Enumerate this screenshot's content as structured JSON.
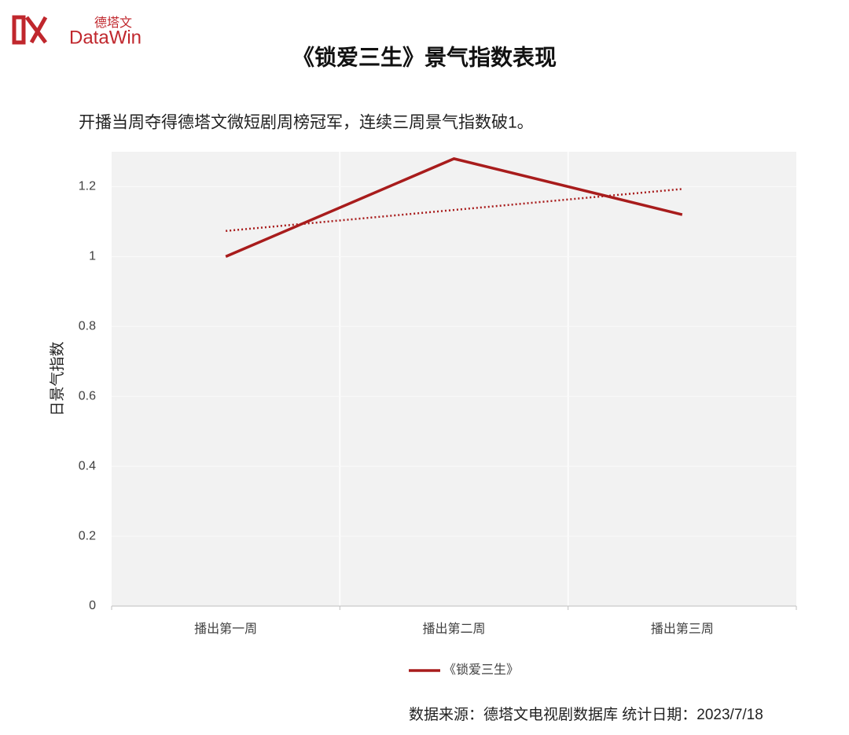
{
  "logo": {
    "cn": "德塔文",
    "en": "DataWin"
  },
  "chart_data": {
    "type": "line",
    "title": "《锁爱三生》景气指数表现",
    "subtitle": "开播当周夺得德塔文微短剧周榜冠军，连续三周景气指数破1。",
    "y_label": "日景气指数",
    "categories": [
      "播出第一周",
      "播出第二周",
      "播出第三周"
    ],
    "series": [
      {
        "name": "《锁爱三生》",
        "color": "#a81c1c",
        "values": [
          1.0,
          1.28,
          1.12
        ]
      }
    ],
    "trendline": true,
    "ylim": [
      0,
      1.3
    ],
    "yticks": [
      0,
      0.2,
      0.4,
      0.6,
      0.8,
      1,
      1.2
    ],
    "grid": true,
    "legend": "bottom",
    "source": "数据来源：德塔文电视剧数据库  统计日期：2023/7/18"
  }
}
